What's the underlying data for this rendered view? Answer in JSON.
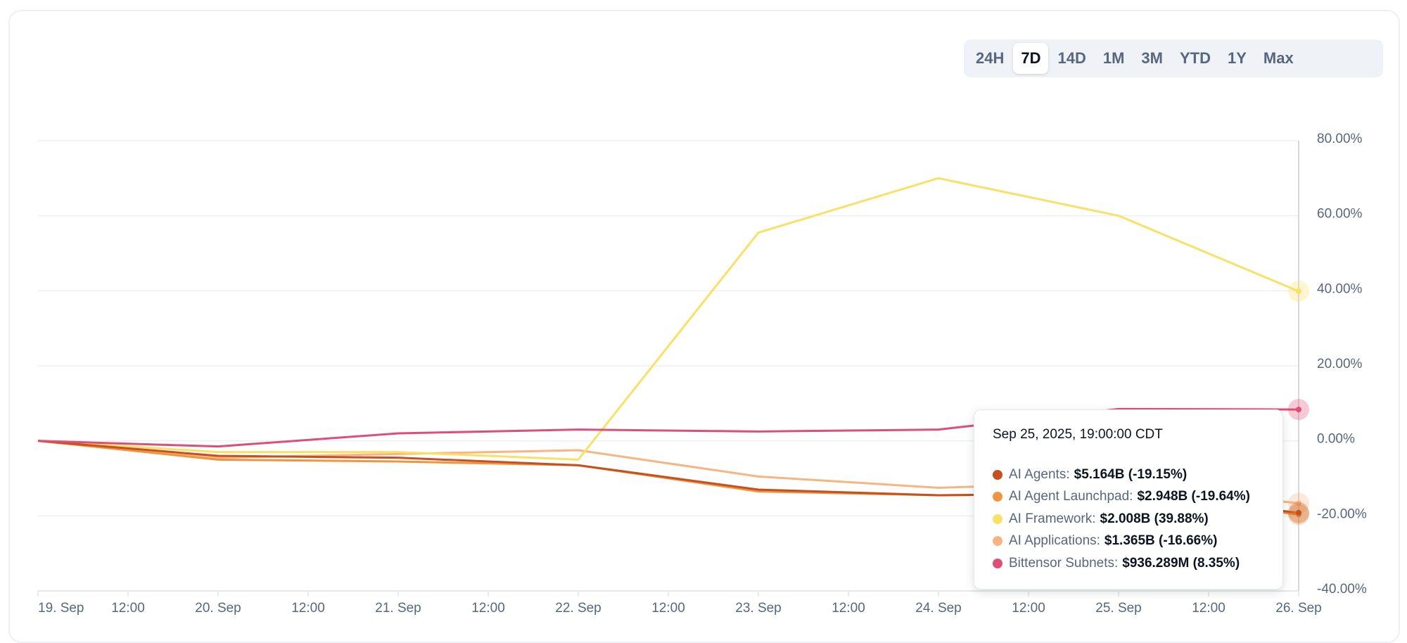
{
  "range_selector": {
    "options": [
      "24H",
      "7D",
      "14D",
      "1M",
      "3M",
      "YTD",
      "1Y",
      "Max"
    ],
    "selected": "7D"
  },
  "tooltip": {
    "date": "Sep 25, 2025, 19:00:00 CDT",
    "rows": [
      {
        "name": "AI Agents:",
        "value": "$5.164B (-19.15%)",
        "color": "#c4511f"
      },
      {
        "name": "AI Agent Launchpad:",
        "value": "$2.948B (-19.64%)",
        "color": "#f0953f"
      },
      {
        "name": "AI Framework:",
        "value": "$2.008B (39.88%)",
        "color": "#f9e066"
      },
      {
        "name": "AI Applications:",
        "value": "$1.365B (-16.66%)",
        "color": "#f8b482"
      },
      {
        "name": "Bittensor Subnets:",
        "value": "$936.289M (8.35%)",
        "color": "#dd4f78"
      }
    ]
  },
  "chart_data": {
    "type": "line",
    "x_ticks": [
      "19. Sep",
      "12:00",
      "20. Sep",
      "12:00",
      "21. Sep",
      "12:00",
      "22. Sep",
      "12:00",
      "23. Sep",
      "12:00",
      "24. Sep",
      "12:00",
      "25. Sep",
      "12:00",
      "26. Sep"
    ],
    "x_range": [
      "19. Sep",
      "26. Sep"
    ],
    "y_ticks": [
      "80.00%",
      "60.00%",
      "40.00%",
      "20.00%",
      "0.00%",
      "-20.00%",
      "-40.00%"
    ],
    "ylim": [
      -40,
      80
    ],
    "y_axis_position": "right",
    "grid": true,
    "x_days": [
      0,
      1,
      2,
      3,
      4,
      5,
      6,
      7
    ],
    "series": [
      {
        "name": "AI Agents",
        "color": "#c4511f",
        "values": [
          0,
          -4,
          -4.5,
          -6.5,
          -13,
          -14.5,
          -14,
          -19.15
        ]
      },
      {
        "name": "AI Agent Launchpad",
        "color": "#f0953f",
        "values": [
          0,
          -5,
          -5.5,
          -6.5,
          -13.5,
          -14.5,
          -14,
          -19.64
        ]
      },
      {
        "name": "AI Framework",
        "color": "#f9e066",
        "values": [
          0,
          -3,
          -3,
          -5,
          55.5,
          70,
          60,
          39.88
        ]
      },
      {
        "name": "AI Applications",
        "color": "#f8b482",
        "values": [
          0,
          -4.5,
          -3.5,
          -2.5,
          -9.5,
          -12.5,
          -11,
          -16.66
        ]
      },
      {
        "name": "Bittensor Subnets",
        "color": "#dd4f78",
        "values": [
          0,
          -1.5,
          2,
          3,
          2.5,
          3,
          8.5,
          8.35
        ]
      }
    ]
  }
}
